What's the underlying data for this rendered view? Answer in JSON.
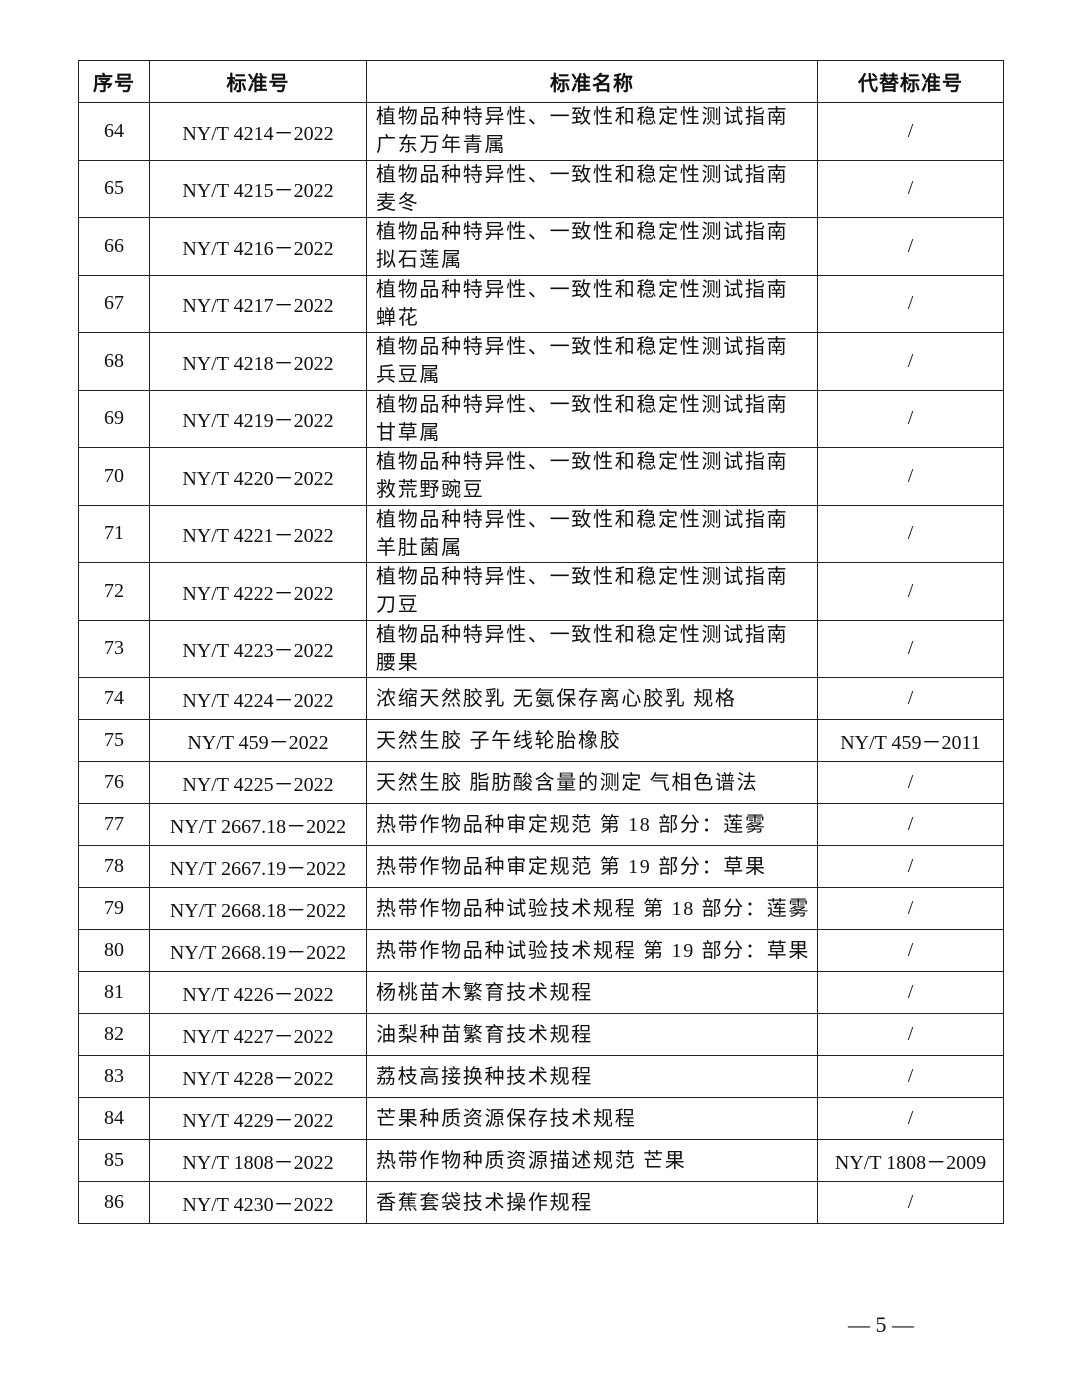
{
  "table": {
    "headers": [
      "序号",
      "标准号",
      "标准名称",
      "代替标准号"
    ],
    "rows": [
      {
        "no": "64",
        "code": "NY/T 4214－2022",
        "name": [
          "植物品种特异性、一致性和稳定性测试指南",
          "广东万年青属"
        ],
        "replaces": "/"
      },
      {
        "no": "65",
        "code": "NY/T 4215－2022",
        "name": [
          "植物品种特异性、一致性和稳定性测试指南",
          "麦冬"
        ],
        "replaces": "/"
      },
      {
        "no": "66",
        "code": "NY/T 4216－2022",
        "name": [
          "植物品种特异性、一致性和稳定性测试指南",
          "拟石莲属"
        ],
        "replaces": "/"
      },
      {
        "no": "67",
        "code": "NY/T 4217－2022",
        "name": [
          "植物品种特异性、一致性和稳定性测试指南",
          "蝉花"
        ],
        "replaces": "/"
      },
      {
        "no": "68",
        "code": "NY/T 4218－2022",
        "name": [
          "植物品种特异性、一致性和稳定性测试指南",
          "兵豆属"
        ],
        "replaces": "/"
      },
      {
        "no": "69",
        "code": "NY/T 4219－2022",
        "name": [
          "植物品种特异性、一致性和稳定性测试指南",
          "甘草属"
        ],
        "replaces": "/"
      },
      {
        "no": "70",
        "code": "NY/T 4220－2022",
        "name": [
          "植物品种特异性、一致性和稳定性测试指南",
          "救荒野豌豆"
        ],
        "replaces": "/"
      },
      {
        "no": "71",
        "code": "NY/T 4221－2022",
        "name": [
          "植物品种特异性、一致性和稳定性测试指南",
          "羊肚菌属"
        ],
        "replaces": "/"
      },
      {
        "no": "72",
        "code": "NY/T 4222－2022",
        "name": [
          "植物品种特异性、一致性和稳定性测试指南",
          "刀豆"
        ],
        "replaces": "/"
      },
      {
        "no": "73",
        "code": "NY/T 4223－2022",
        "name": [
          "植物品种特异性、一致性和稳定性测试指南",
          "腰果"
        ],
        "replaces": "/"
      },
      {
        "no": "74",
        "code": "NY/T 4224－2022",
        "name": [
          "浓缩天然胶乳 无氨保存离心胶乳 规格"
        ],
        "replaces": "/"
      },
      {
        "no": "75",
        "code": "NY/T 459－2022",
        "name": [
          "天然生胶 子午线轮胎橡胶"
        ],
        "replaces": "NY/T 459－2011"
      },
      {
        "no": "76",
        "code": "NY/T 4225－2022",
        "name": [
          "天然生胶 脂肪酸含量的测定 气相色谱法"
        ],
        "replaces": "/"
      },
      {
        "no": "77",
        "code": "NY/T 2667.18－2022",
        "name": [
          "热带作物品种审定规范 第 18 部分：莲雾"
        ],
        "replaces": "/"
      },
      {
        "no": "78",
        "code": "NY/T 2667.19－2022",
        "name": [
          "热带作物品种审定规范 第 19 部分：草果"
        ],
        "replaces": "/"
      },
      {
        "no": "79",
        "code": "NY/T 2668.18－2022",
        "name": [
          "热带作物品种试验技术规程 第 18 部分：莲雾"
        ],
        "replaces": "/"
      },
      {
        "no": "80",
        "code": "NY/T 2668.19－2022",
        "name": [
          "热带作物品种试验技术规程 第 19 部分：草果"
        ],
        "replaces": "/"
      },
      {
        "no": "81",
        "code": "NY/T 4226－2022",
        "name": [
          "杨桃苗木繁育技术规程"
        ],
        "replaces": "/"
      },
      {
        "no": "82",
        "code": "NY/T 4227－2022",
        "name": [
          "油梨种苗繁育技术规程"
        ],
        "replaces": "/"
      },
      {
        "no": "83",
        "code": "NY/T 4228－2022",
        "name": [
          "荔枝高接换种技术规程"
        ],
        "replaces": "/"
      },
      {
        "no": "84",
        "code": "NY/T 4229－2022",
        "name": [
          "芒果种质资源保存技术规程"
        ],
        "replaces": "/"
      },
      {
        "no": "85",
        "code": "NY/T 1808－2022",
        "name": [
          "热带作物种质资源描述规范 芒果"
        ],
        "replaces": "NY/T 1808－2009"
      },
      {
        "no": "86",
        "code": "NY/T 4230－2022",
        "name": [
          "香蕉套袋技术操作规程"
        ],
        "replaces": "/"
      }
    ]
  },
  "page_number": "— 5 —"
}
